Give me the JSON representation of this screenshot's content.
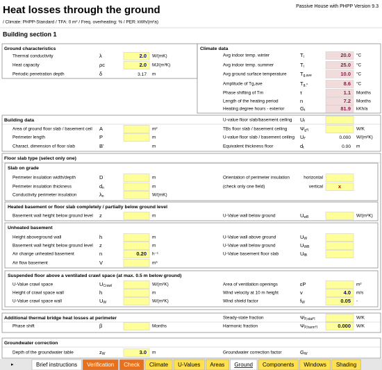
{
  "header": {
    "title": "Heat losses through the ground",
    "version": "Passive House with PHPP Version 9.3",
    "subtitle": "/ Climate: PHPP-Standard / TFA: 0 m² / Freq. overheating:  % / PER:  kWh/(m²a)",
    "section": "Building section 1"
  },
  "ground": {
    "heading": "Ground characteristics",
    "rows": [
      {
        "left": {
          "label": "Thermal conductivity",
          "symbol": "λ",
          "value": "2.0",
          "unit": "W/(mK)",
          "kind": "input"
        }
      },
      {
        "left": {
          "label": "Heat capacity",
          "symbol": "ρc",
          "value": "2.0",
          "unit": "MJ/(m³K)",
          "kind": "input"
        }
      },
      {
        "left": {
          "label": "Periodic penetration depth",
          "symbol": "δ",
          "value": "3.17",
          "unit": "m",
          "kind": "plain"
        }
      }
    ]
  },
  "climate": {
    "heading": "Climate data",
    "rows": [
      {
        "right": {
          "label": "Avg indoor temp. winter",
          "symbol": "T",
          "sub": "i",
          "value": "20.0",
          "unit": "°C",
          "kind": "climate"
        }
      },
      {
        "right": {
          "label": "Avg indoor temp. summer",
          "symbol": "T",
          "sub": "i",
          "value": "25.0",
          "unit": "°C",
          "kind": "climate"
        }
      },
      {
        "right": {
          "label": "Avg ground surface temperature",
          "symbol": "T",
          "sub": "g,ave",
          "value": "10.0",
          "unit": "°C",
          "kind": "climate"
        }
      },
      {
        "right": {
          "label": "Amplitude of Tg,ave",
          "symbol": "T",
          "sub": "g,^",
          "value": "8.6",
          "unit": "°C",
          "kind": "climate"
        }
      },
      {
        "right": {
          "label": "Phase shifting of Tm",
          "symbol": "τ",
          "value": "1.1",
          "unit": "Months",
          "kind": "climate"
        }
      },
      {
        "right": {
          "label": "Length of the heating period",
          "symbol": "n",
          "value": "7.2",
          "unit": "Months",
          "kind": "climate"
        }
      },
      {
        "right": {
          "label": "Heating degree hours - exterior",
          "symbol": "G",
          "sub": "t",
          "value": "81.9",
          "unit": "kKh/a",
          "kind": "climate"
        }
      }
    ]
  },
  "blocks": [
    {
      "heading": "Building data",
      "rows": [
        {
          "right": {
            "label": "U-value floor slab/basement ceiling",
            "symbol": "U",
            "sub": "f",
            "kind": "input"
          }
        },
        {
          "left": {
            "label": "Area of ground floor slab / basement ceil",
            "symbol": "A",
            "unit": "m²",
            "kind": "input"
          },
          "right": {
            "label": "TBs floor slab / basement ceiling",
            "symbol": "Ψ",
            "sub": "g*l",
            "unit": "W/K",
            "kind": "input"
          }
        },
        {
          "left": {
            "label": "Perimeter length",
            "symbol": "P",
            "unit": "m",
            "kind": "input"
          },
          "right": {
            "label": "U-value floor slab / basement ceiling",
            "symbol": "U",
            "sub": "f'",
            "value": "0.000",
            "unit": "W/(m²K)",
            "kind": "plain"
          }
        },
        {
          "left": {
            "label": "Charact. dimension of floor slab",
            "symbol": "B'",
            "unit": "m",
            "kind": "plain"
          },
          "right": {
            "label": "Equivalent thickness floor",
            "symbol": "d",
            "sub": "t",
            "value": "0.00",
            "unit": "m",
            "kind": "plain"
          }
        }
      ]
    },
    {
      "heading": "Floor slab type (select only one)",
      "groups": [
        {
          "heading": "Slab on grade",
          "rows": [
            {
              "left": {
                "label": "Perimeter insulation width/depth",
                "symbol": "D",
                "unit": "m",
                "kind": "input"
              },
              "right": {
                "label": "Orientation of perimeter insulation",
                "option": "horizontal",
                "kind": "input"
              }
            },
            {
              "left": {
                "label": "Perimeter insulation thickness",
                "symbol": "d",
                "sub": "n",
                "unit": "m",
                "kind": "input"
              },
              "right": {
                "label": "(check only one field)",
                "option": "vertical",
                "value": "x",
                "kind": "check"
              }
            },
            {
              "left": {
                "label": "Conductivity perimeter insulation",
                "symbol": "λ",
                "sub": "n",
                "unit": "W/(mK)",
                "kind": "input"
              }
            }
          ]
        },
        {
          "heading": "Heated basement or floor slab completely / partially below ground level",
          "rows": [
            {
              "left": {
                "label": "Basement wall height below ground level",
                "symbol": "z",
                "unit": "m",
                "kind": "input"
              },
              "right": {
                "label": "U-Value wall below ground",
                "symbol": "U",
                "sub": "wB",
                "unit": "W/(m²K)",
                "kind": "input"
              }
            }
          ]
        },
        {
          "heading": "Unheated basement",
          "rows": [
            {
              "left": {
                "label": "Height aboveground wall",
                "symbol": "h",
                "unit": "m",
                "kind": "input"
              },
              "right": {
                "label": "U-Value wall above ground",
                "symbol": "U",
                "sub": "W",
                "kind": "input"
              }
            },
            {
              "left": {
                "label": "Basement wall height below ground level",
                "symbol": "z",
                "unit": "m",
                "kind": "input"
              },
              "right": {
                "label": "U-Value wall below ground",
                "symbol": "U",
                "sub": "WB",
                "kind": "input"
              }
            },
            {
              "left": {
                "label": "Air change unheated basement",
                "symbol": "n",
                "value": "0.20",
                "unit": "h⁻¹",
                "kind": "input"
              },
              "right": {
                "label": "U-Value basement floor slab",
                "symbol": "U",
                "sub": "fB",
                "kind": "input"
              }
            },
            {
              "left": {
                "label": "Air flow basement",
                "symbol": "V",
                "unit": "m³",
                "kind": "input"
              }
            }
          ]
        },
        {
          "heading": "Suspended floor above a ventilated crawl space (at max. 0.5 m below ground)",
          "rows": [
            {
              "left": {
                "label": "U-Value crawl space",
                "symbol": "U",
                "sub": "Crawl",
                "unit": "W/(m²K)",
                "kind": "input"
              },
              "right": {
                "label": "Area of ventilation openings",
                "symbol": "εP",
                "unit": "m²",
                "kind": "input"
              }
            },
            {
              "left": {
                "label": "Height of crawl space wall",
                "symbol": "h",
                "unit": "m",
                "kind": "input"
              },
              "right": {
                "label": "Wind velocity at 10 m height",
                "symbol": "v",
                "value": "4.0",
                "unit": "m/s",
                "kind": "input"
              }
            },
            {
              "left": {
                "label": "U-Value crawl space wall",
                "symbol": "U",
                "sub": "W",
                "unit": "W/(m²K)",
                "kind": "input"
              },
              "right": {
                "label": "Wind shield factor",
                "symbol": "f",
                "sub": "W",
                "value": "0.05",
                "unit": "-",
                "kind": "input"
              }
            }
          ]
        }
      ]
    },
    {
      "heading": "Additional thermal bridge heat losses at perimeter",
      "rows": [
        {
          "right": {
            "label": "Steady-state fraction",
            "symbol": "Ψ",
            "sub": "P,stat*l",
            "unit": "W/K",
            "kind": "input"
          }
        },
        {
          "left": {
            "label": "Phase shift",
            "symbol": "β",
            "unit": "Months",
            "kind": "input"
          },
          "right": {
            "label": "Harmonic fraction",
            "symbol": "Ψ",
            "sub": "P,harm*l",
            "value": "0.000",
            "unit": "W/K",
            "kind": "input"
          }
        }
      ]
    },
    {
      "heading": "Groundwater correction",
      "rows": [
        {
          "left": {
            "label": "Depth of the groundwater table",
            "symbol": "z",
            "sub": "W",
            "value": "3.0",
            "unit": "m",
            "kind": "input"
          },
          "right": {
            "label": "Groundwater correction factor",
            "symbol": "G",
            "sub": "W",
            "kind": "plain"
          }
        }
      ]
    }
  ],
  "tabs": [
    {
      "name": "Brief instructions",
      "color": "#ffffff"
    },
    {
      "name": "Verification",
      "color": "#e9711c"
    },
    {
      "name": "Check",
      "color": "#e9711c"
    },
    {
      "name": "Climate",
      "color": "#ffe14d"
    },
    {
      "name": "U-Values",
      "color": "#ffe14d"
    },
    {
      "name": "Areas",
      "color": "#ffe14d"
    },
    {
      "name": "Ground",
      "color": "#ffffff"
    },
    {
      "name": "Components",
      "color": "#ffe14d"
    },
    {
      "name": "Windows",
      "color": "#ffe14d"
    },
    {
      "name": "Shading",
      "color": "#ffe14d"
    }
  ]
}
